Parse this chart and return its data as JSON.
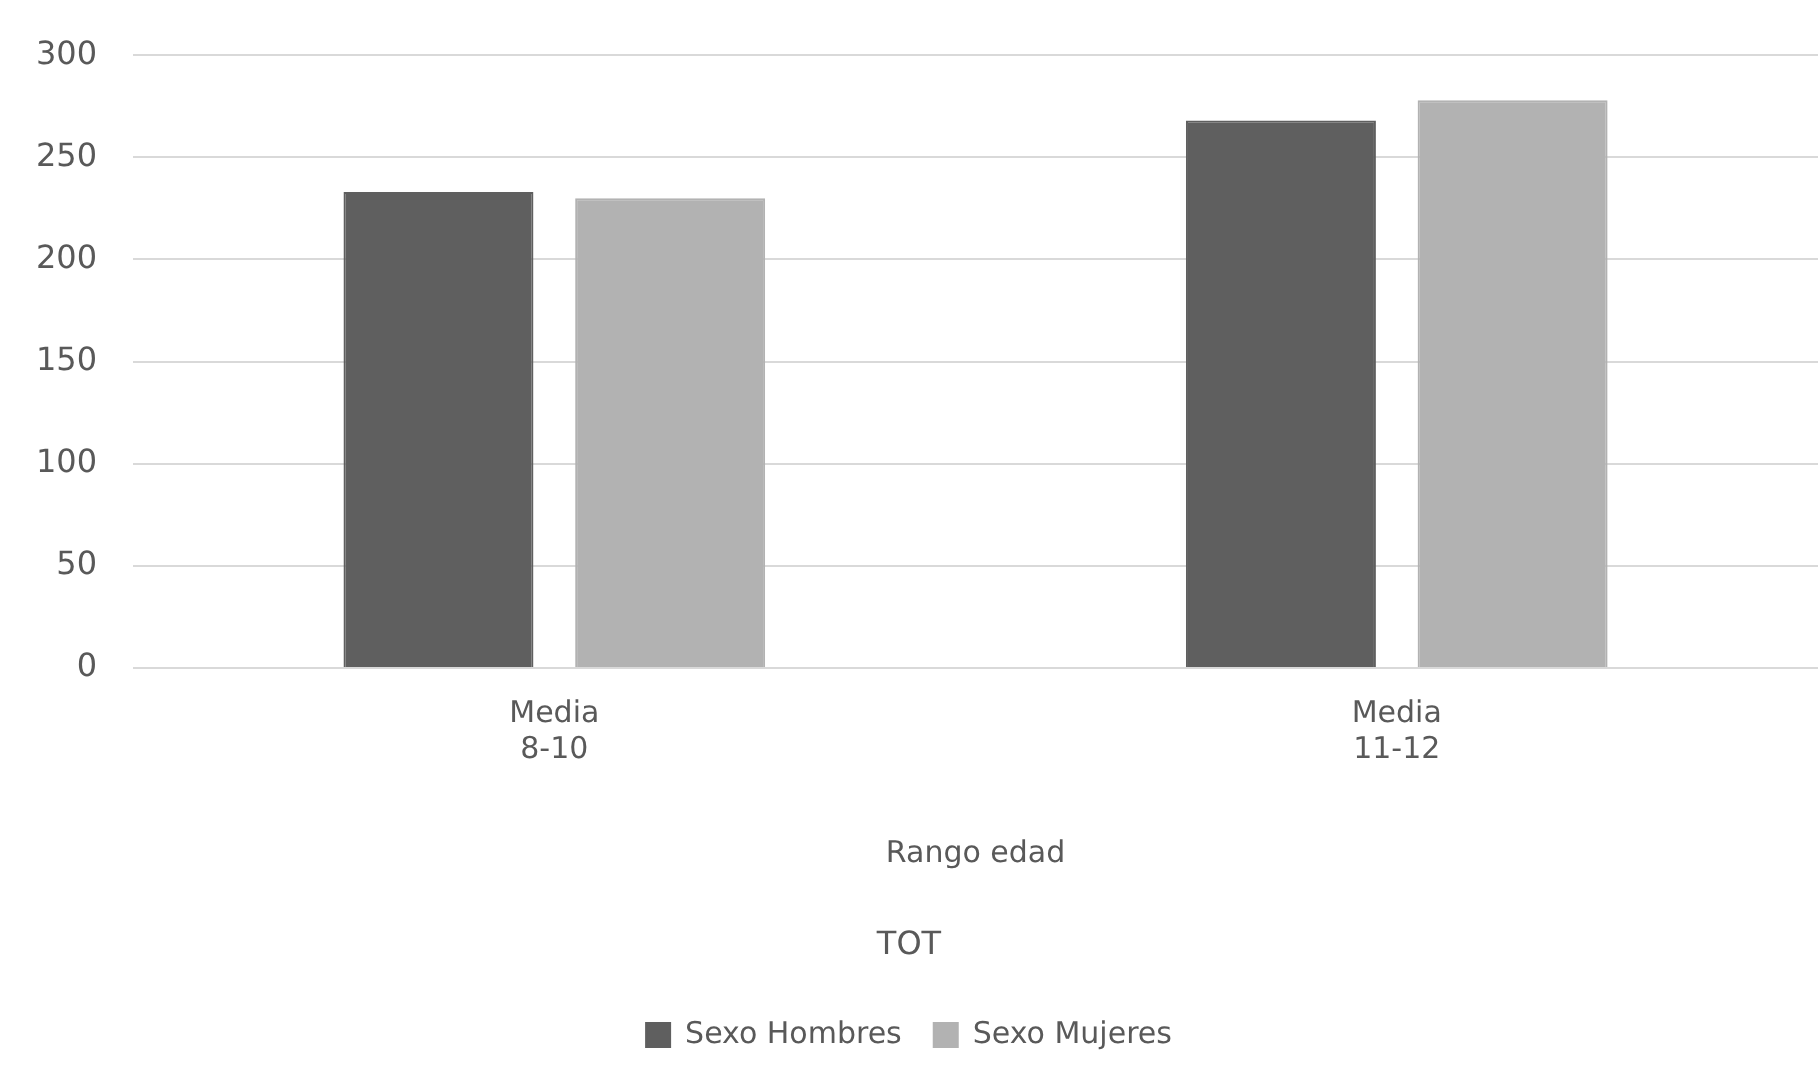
{
  "chart_data": {
    "type": "bar",
    "categories": [
      "Media\n8-10",
      "Media\n11-12"
    ],
    "series": [
      {
        "name": "Sexo Hombres",
        "color": "#5f5f5f",
        "values": [
          233,
          268
        ]
      },
      {
        "name": "Sexo Mujeres",
        "color": "#b2b2b2",
        "values": [
          230,
          278
        ]
      }
    ],
    "xlabel": "Rango edad",
    "annotations": [
      "TOT"
    ],
    "ylim": [
      0,
      300
    ],
    "yticks": [
      0,
      50,
      100,
      150,
      200,
      250,
      300
    ],
    "grid": "y",
    "legend": "bottom"
  }
}
